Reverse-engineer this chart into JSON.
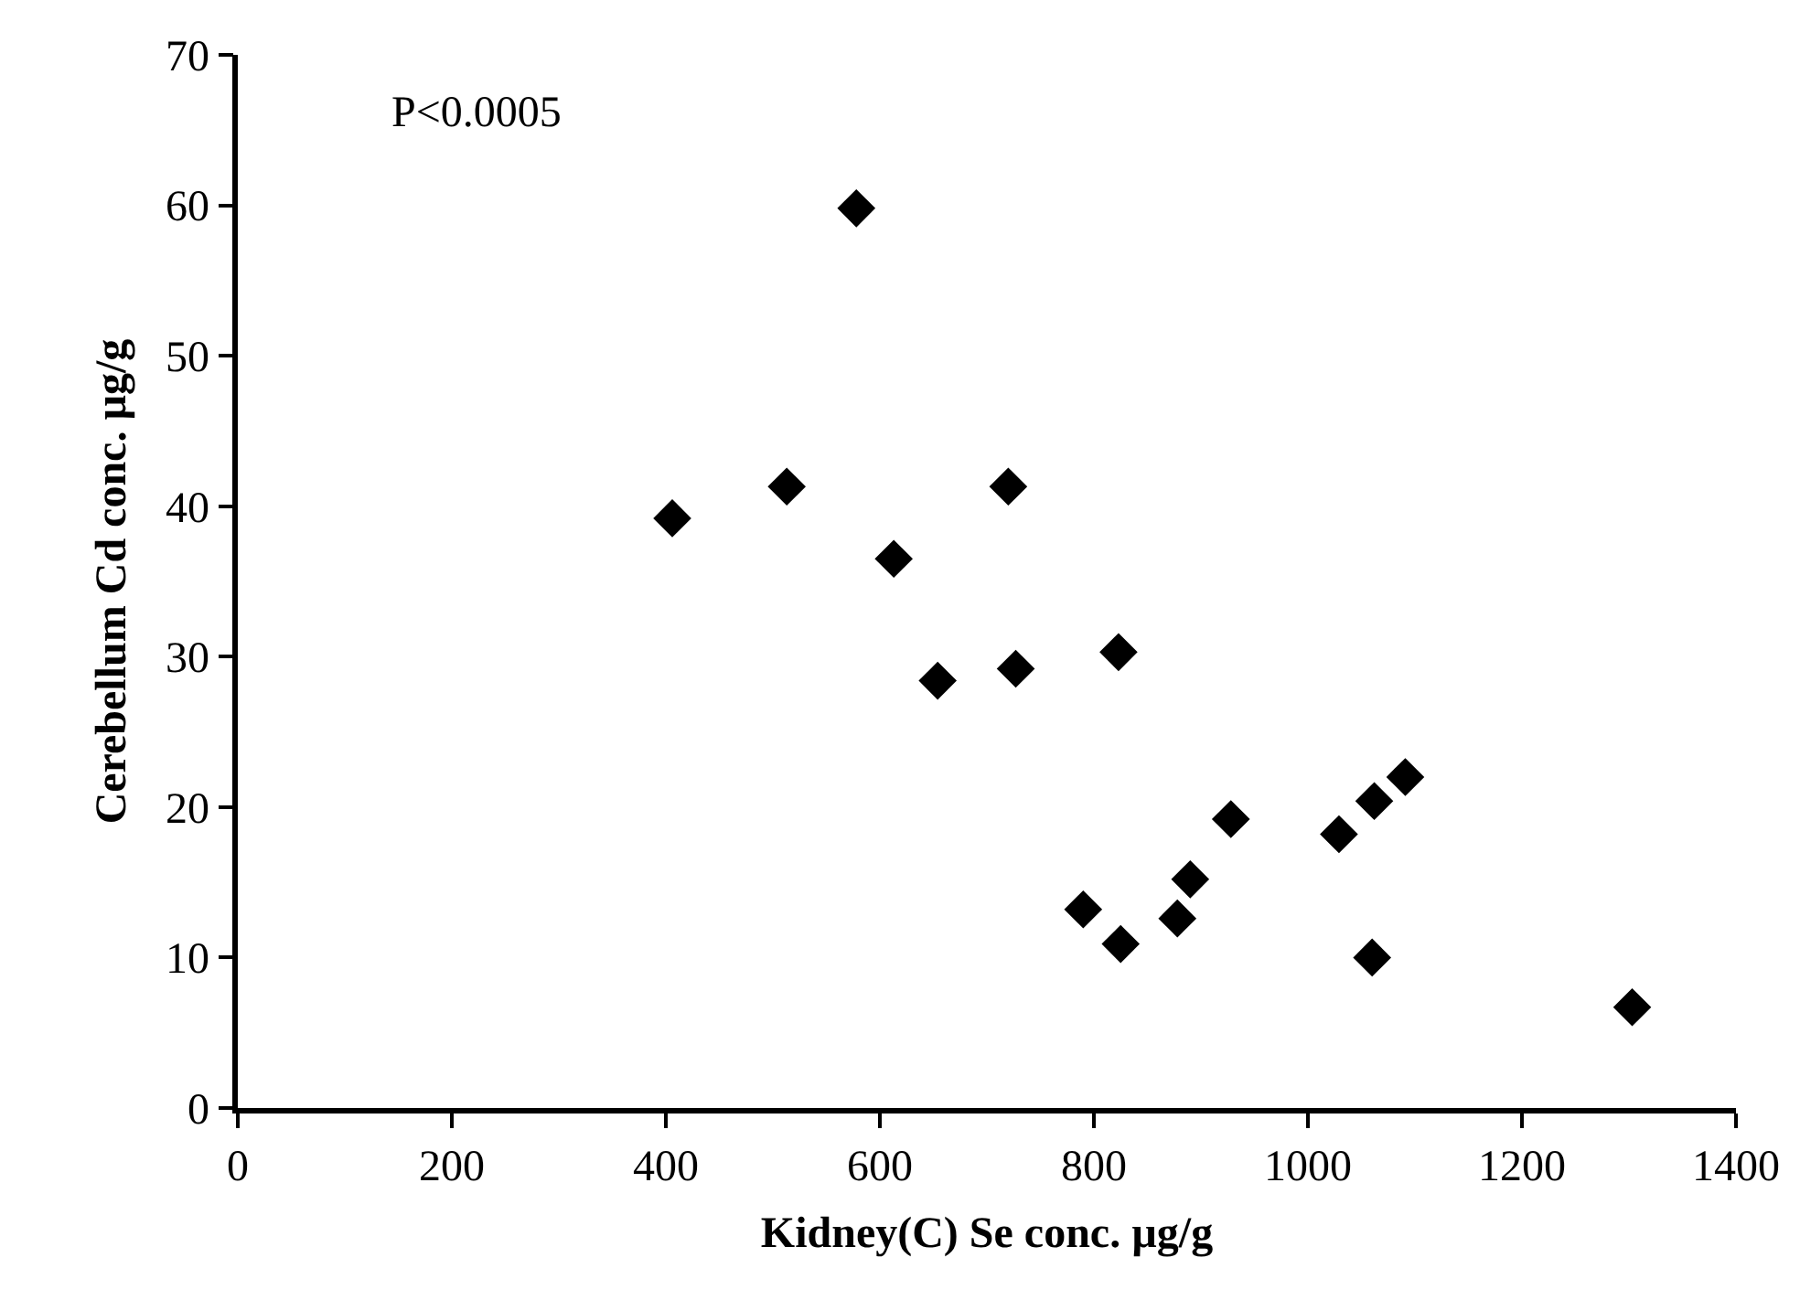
{
  "chart_data": {
    "type": "scatter",
    "xlabel": "Kidney(C) Se conc. µg/g",
    "ylabel": "Cerebellum Cd conc. µg/g",
    "annotations": [
      "P<0.0005"
    ],
    "x": [
      406,
      513,
      578,
      613,
      720,
      654,
      727,
      823,
      790,
      825,
      878,
      890,
      928,
      1029,
      1062,
      1091,
      1060,
      1303
    ],
    "values": [
      39.2,
      41.3,
      59.8,
      36.5,
      41.3,
      28.4,
      29.2,
      30.3,
      13.2,
      10.9,
      12.6,
      15.2,
      19.2,
      18.2,
      20.4,
      22.0,
      10.0,
      6.7
    ],
    "color": "#000000",
    "marker": "diamond",
    "xlim": [
      0,
      1400
    ],
    "xticks": [
      0,
      200,
      400,
      600,
      800,
      1000,
      1200,
      1400
    ],
    "ylim": [
      0,
      70
    ],
    "yticks": [
      0,
      10,
      20,
      30,
      40,
      50,
      60,
      70
    ]
  }
}
